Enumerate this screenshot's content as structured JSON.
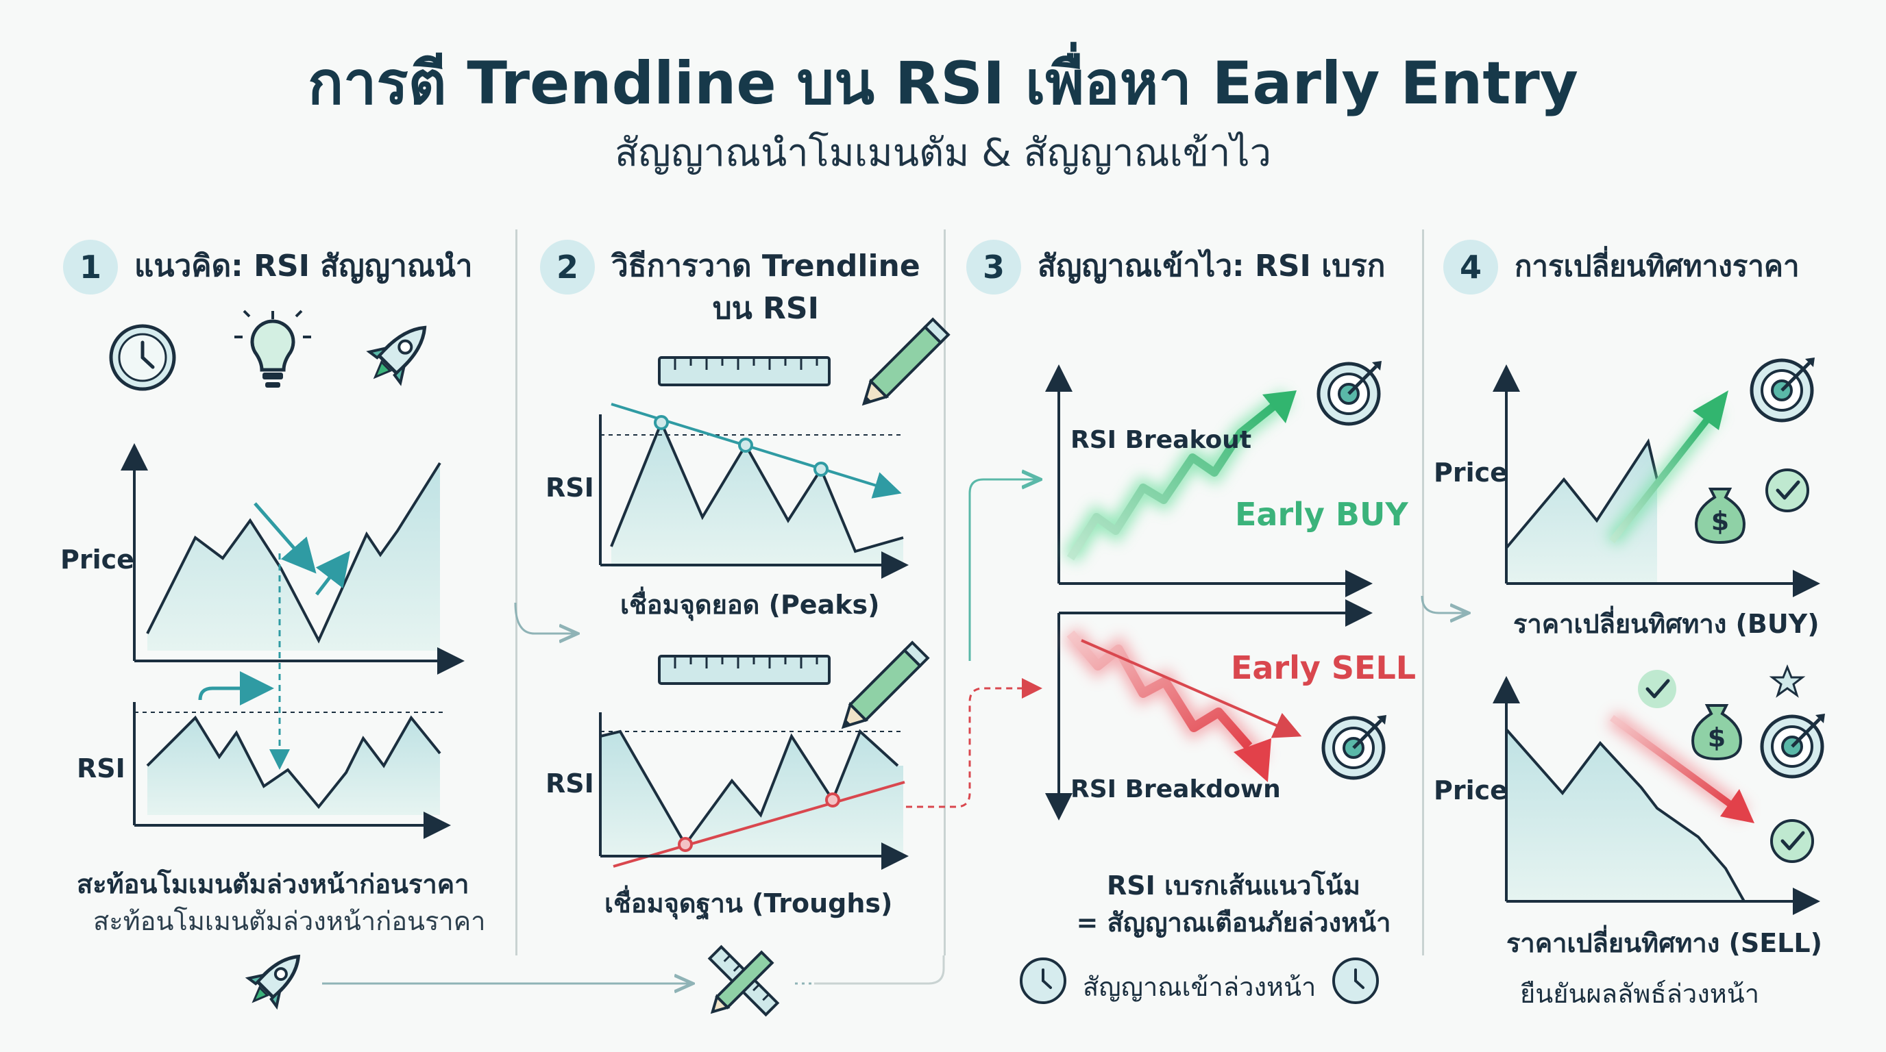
{
  "title": "การตี Trendline บน RSI เพื่อหา Early Entry",
  "subtitle": "สัญญาณนำโมเมนตัม & สัญญาณเข้าไว",
  "sections": [
    {
      "number": "1",
      "title": "แนวคิด: RSI สัญญาณนำ",
      "price_label": "Price",
      "rsi_label": "RSI",
      "caption_bold": "สะท้อนโมเมนตัมล่วงหน้าก่อนราคา",
      "caption_light": "สะท้อนโมเมนตัมล่วงหน้าก่อนราคา"
    },
    {
      "number": "2",
      "title_line1": "วิธีการวาด Trendline",
      "title_line2": "บน RSI",
      "rsi_label_top": "RSI",
      "caption_peaks": "เชื่อมจุดยอด (Peaks)",
      "rsi_label_bottom": "RSI",
      "caption_troughs": "เชื่อมจุดฐาน (Troughs)"
    },
    {
      "number": "3",
      "title": "สัญญาณเข้าไว: RSI เบรก",
      "breakout_label": "RSI Breakout",
      "early_buy": "Early BUY",
      "early_sell": "Early SELL",
      "breakdown_label": "RSI Breakdown",
      "caption_line1": "RSI เบรกเส้นแนวโน้ม",
      "caption_line2": "= สัญญาณเตือนภัยล่วงหน้า",
      "footer": "สัญญาณเข้าล่วงหน้า"
    },
    {
      "number": "4",
      "title": "การเปลี่ยนทิศทางราคา",
      "price_label_top": "Price",
      "caption_buy": "ราคาเปลี่ยนทิศทาง (BUY)",
      "price_label_bottom": "Price",
      "caption_sell": "ราคาเปลี่ยนทิศทาง (SELL)",
      "footer": "ยืนยันผลลัพธ์ล่วงหน้า"
    }
  ],
  "colors": {
    "teal": "#2f9ba3",
    "green": "#3bb37b",
    "red": "#d9474e",
    "area_fill": "#cfe9ea",
    "dark": "#1b2f3f"
  },
  "icons": [
    "clock-icon",
    "lightbulb-icon",
    "rocket-icon",
    "ruler-icon",
    "pencil-icon",
    "target-icon",
    "money-bag-icon",
    "check-icon",
    "star-icon",
    "ruler-pencil-icon"
  ]
}
